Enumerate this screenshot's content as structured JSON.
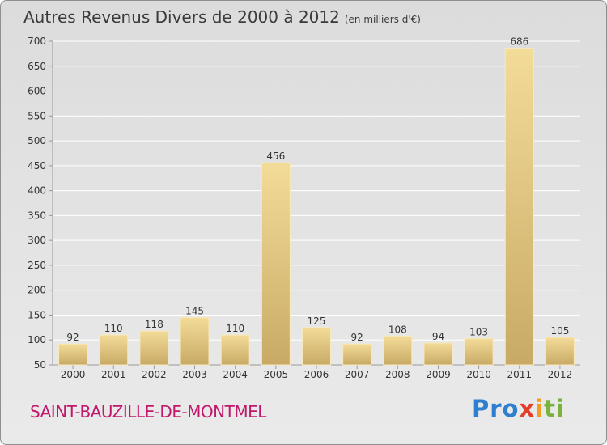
{
  "title": {
    "main": "Autres Revenus Divers de 2000 à 2012",
    "unit": "(en milliers d'€)"
  },
  "commune": "SAINT-BAUZILLE-DE-MONTMEL",
  "logo": {
    "text": "Proxiti",
    "colors": [
      "#2f7fd0",
      "#e0402a",
      "#f0a020",
      "#7ab33c"
    ]
  },
  "chart_data": {
    "type": "bar",
    "title": "Autres Revenus Divers de 2000 à 2012",
    "subtitle": "(en milliers d'€)",
    "xlabel": "",
    "ylabel": "",
    "categories": [
      "2000",
      "2001",
      "2002",
      "2003",
      "2004",
      "2005",
      "2006",
      "2007",
      "2008",
      "2009",
      "2010",
      "2011",
      "2012"
    ],
    "values": [
      92,
      110,
      118,
      145,
      110,
      456,
      125,
      92,
      108,
      94,
      103,
      686,
      105
    ],
    "ylim": [
      50,
      700
    ],
    "yticks": [
      50,
      100,
      150,
      200,
      250,
      300,
      350,
      400,
      450,
      500,
      550,
      600,
      650,
      700
    ],
    "grid": true,
    "legend": "none",
    "bar_color": "#e6cc86"
  }
}
